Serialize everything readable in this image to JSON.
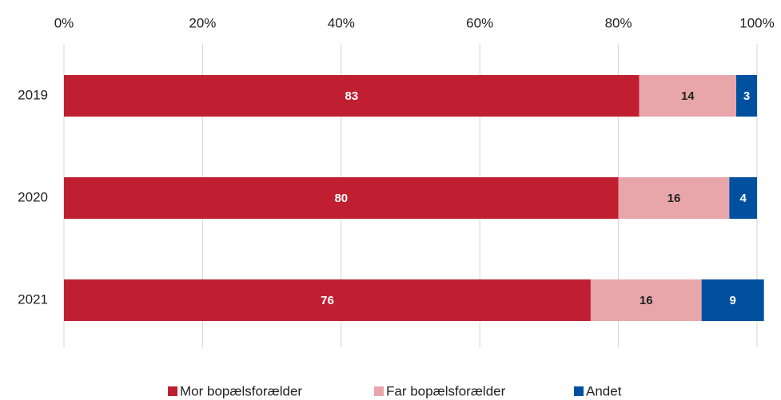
{
  "chart_data": {
    "type": "stacked-barh",
    "categories": [
      "2019",
      "2020",
      "2021"
    ],
    "series": [
      {
        "name": "Mor bopælsforælder",
        "color": "#c01f32",
        "values": [
          83,
          80,
          76
        ]
      },
      {
        "name": "Far bopælsforælder",
        "color": "#e8a6ab",
        "values": [
          14,
          16,
          16
        ]
      },
      {
        "name": "Andet",
        "color": "#0050a0",
        "values": [
          3,
          4,
          9
        ]
      }
    ],
    "xlim": [
      0,
      100
    ],
    "xticks": [
      {
        "value": 0,
        "label": "0%"
      },
      {
        "value": 20,
        "label": "20%"
      },
      {
        "value": 40,
        "label": "40%"
      },
      {
        "value": 60,
        "label": "60%"
      },
      {
        "value": 80,
        "label": "80%"
      },
      {
        "value": 100,
        "label": "100%"
      }
    ],
    "grid": true,
    "legend": "bottom"
  }
}
